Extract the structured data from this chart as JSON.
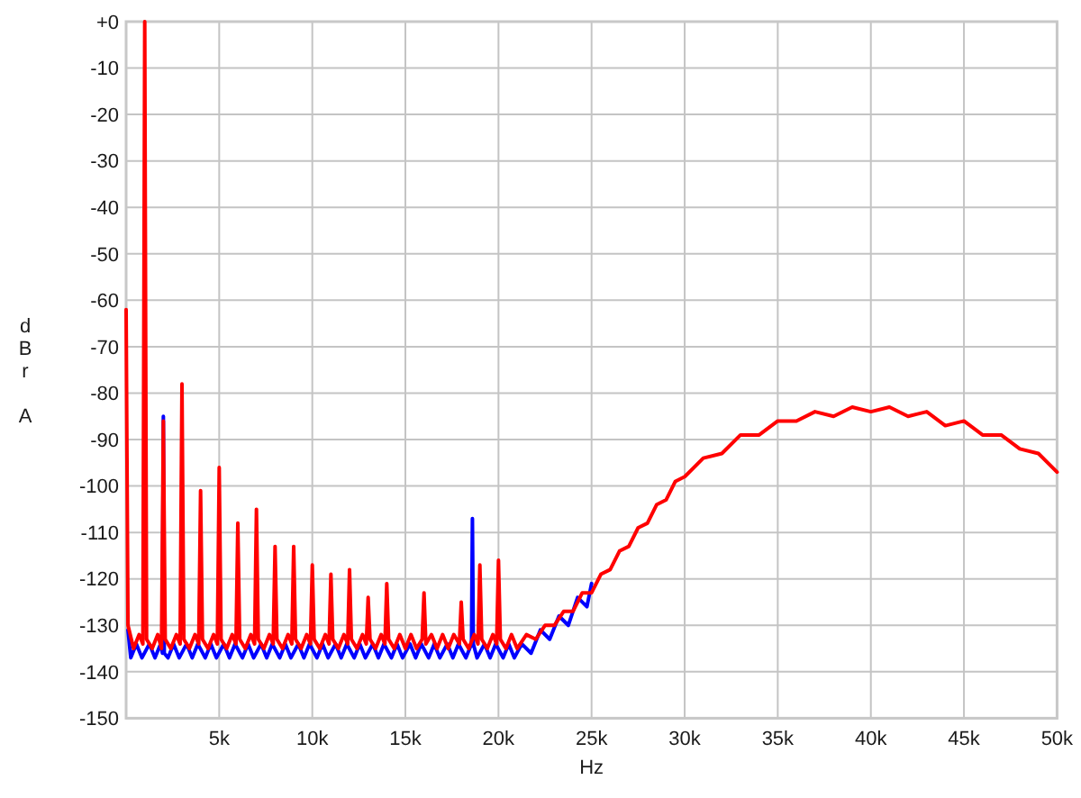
{
  "chart_data": {
    "type": "line",
    "xlabel": "Hz",
    "ylabel": "dBr A",
    "xlim": [
      0,
      50000
    ],
    "ylim": [
      -150,
      0
    ],
    "xticks": [
      {
        "value": 5000,
        "label": "5k"
      },
      {
        "value": 10000,
        "label": "10k"
      },
      {
        "value": 15000,
        "label": "15k"
      },
      {
        "value": 20000,
        "label": "20k"
      },
      {
        "value": 25000,
        "label": "25k"
      },
      {
        "value": 30000,
        "label": "30k"
      },
      {
        "value": 35000,
        "label": "35k"
      },
      {
        "value": 40000,
        "label": "40k"
      },
      {
        "value": 45000,
        "label": "45k"
      },
      {
        "value": 50000,
        "label": "50k"
      }
    ],
    "yticks": [
      {
        "value": 0,
        "label": "+0"
      },
      -10,
      -20,
      -30,
      -40,
      -50,
      -60,
      -70,
      -80,
      -90,
      -100,
      -110,
      -120,
      -130,
      -140,
      -150
    ],
    "grid": true,
    "line_style": "solid",
    "series": [
      {
        "color": "#0000ff",
        "x": [
          100,
          250,
          550,
          850,
          1250,
          1550,
          1850,
          1950,
          2000,
          2050,
          2250,
          2550,
          2850,
          3250,
          3550,
          3850,
          4250,
          4550,
          4850,
          5250,
          5550,
          5850,
          6250,
          6550,
          6850,
          7250,
          7550,
          7850,
          8250,
          8550,
          8850,
          9250,
          9550,
          9850,
          10250,
          10550,
          10850,
          11250,
          11550,
          11850,
          12250,
          12550,
          12850,
          13250,
          13550,
          13850,
          14250,
          14550,
          14850,
          15250,
          15550,
          15850,
          16250,
          16550,
          16850,
          17250,
          17550,
          17850,
          18250,
          18550,
          18600,
          18650,
          18850,
          19250,
          19550,
          19850,
          20250,
          20550,
          20850,
          21250,
          21750,
          22250,
          22750,
          23250,
          23750,
          24250,
          24750,
          25000
        ],
        "values": [
          -131,
          -137,
          -134,
          -137,
          -134,
          -137,
          -134,
          -136,
          -85,
          -136,
          -137,
          -134,
          -137,
          -134,
          -137,
          -134,
          -137,
          -134,
          -137,
          -134,
          -137,
          -134,
          -137,
          -134,
          -137,
          -134,
          -137,
          -134,
          -137,
          -134,
          -137,
          -134,
          -137,
          -134,
          -137,
          -134,
          -137,
          -134,
          -137,
          -134,
          -137,
          -134,
          -137,
          -134,
          -137,
          -134,
          -137,
          -134,
          -137,
          -134,
          -137,
          -134,
          -137,
          -134,
          -137,
          -134,
          -137,
          -134,
          -137,
          -134,
          -107,
          -134,
          -137,
          -134,
          -137,
          -134,
          -137,
          -134,
          -137,
          -134,
          -136,
          -131,
          -133,
          -128,
          -130,
          -124,
          -126,
          -121
        ]
      },
      {
        "color": "#ff0000",
        "x": [
          0,
          100,
          400,
          700,
          900,
          1000,
          1100,
          1400,
          1700,
          1900,
          2000,
          2100,
          2400,
          2700,
          2900,
          3000,
          3100,
          3400,
          3700,
          3900,
          4000,
          4100,
          4400,
          4700,
          4900,
          5000,
          5100,
          5400,
          5700,
          5900,
          6000,
          6100,
          6400,
          6700,
          6900,
          7000,
          7100,
          7400,
          7700,
          7900,
          8000,
          8100,
          8400,
          8700,
          8900,
          9000,
          9100,
          9400,
          9700,
          9900,
          10000,
          10100,
          10400,
          10700,
          10900,
          11000,
          11100,
          11400,
          11700,
          11900,
          12000,
          12100,
          12400,
          12700,
          12900,
          13000,
          13100,
          13400,
          13700,
          13900,
          14000,
          14100,
          14400,
          14700,
          15000,
          15300,
          15600,
          15900,
          16000,
          16100,
          16400,
          16700,
          17000,
          17300,
          17600,
          17900,
          18000,
          18100,
          18400,
          18700,
          18900,
          19000,
          19100,
          19400,
          19700,
          19900,
          20000,
          20100,
          20400,
          20700,
          21000,
          21500,
          22000,
          22500,
          23000,
          23500,
          24000,
          24500,
          25000,
          25500,
          26000,
          26500,
          27000,
          27500,
          28000,
          28500,
          29000,
          29500,
          30000,
          31000,
          32000,
          33000,
          34000,
          35000,
          36000,
          37000,
          38000,
          39000,
          40000,
          41000,
          42000,
          43000,
          44000,
          45000,
          46000,
          47000,
          48000,
          49000,
          50000
        ],
        "values": [
          -62,
          -130,
          -135,
          -132,
          -134,
          0,
          -133,
          -135,
          -132,
          -135,
          -86,
          -133,
          -135,
          -132,
          -134,
          -78,
          -133,
          -135,
          -132,
          -134,
          -101,
          -133,
          -135,
          -132,
          -134,
          -96,
          -133,
          -135,
          -132,
          -134,
          -108,
          -133,
          -135,
          -132,
          -134,
          -105,
          -133,
          -135,
          -132,
          -134,
          -113,
          -133,
          -135,
          -132,
          -134,
          -113,
          -133,
          -135,
          -132,
          -134,
          -117,
          -133,
          -135,
          -132,
          -134,
          -119,
          -133,
          -135,
          -132,
          -134,
          -118,
          -133,
          -135,
          -132,
          -134,
          -124,
          -133,
          -135,
          -132,
          -134,
          -121,
          -133,
          -135,
          -132,
          -135,
          -132,
          -135,
          -133,
          -123,
          -134,
          -132,
          -135,
          -132,
          -135,
          -132,
          -134,
          -125,
          -133,
          -135,
          -132,
          -134,
          -117,
          -133,
          -135,
          -132,
          -134,
          -116,
          -133,
          -135,
          -132,
          -135,
          -132,
          -133,
          -130,
          -130,
          -127,
          -127,
          -123,
          -123,
          -119,
          -118,
          -114,
          -113,
          -109,
          -108,
          -104,
          -103,
          -99,
          -98,
          -94,
          -93,
          -89,
          -89,
          -86,
          -86,
          -84,
          -85,
          -83,
          -84,
          -83,
          -85,
          -84,
          -87,
          -86,
          -89,
          -89,
          -92,
          -93,
          -97
        ]
      }
    ]
  }
}
